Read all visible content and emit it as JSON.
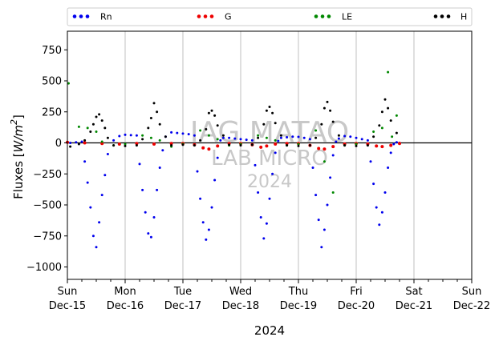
{
  "chart_data": {
    "type": "scatter",
    "xlabel": "2024",
    "ylabel_main": "Fluxes [",
    "ylabel_unit": "W/m",
    "ylabel_exp": "2",
    "ylabel_close": "]",
    "ylim": [
      -1100,
      900
    ],
    "xlim_days": [
      0,
      7
    ],
    "yticks": [
      -1000,
      -750,
      -500,
      -250,
      0,
      250,
      500,
      750
    ],
    "xticks": [
      {
        "day": 0,
        "label1": "Sun",
        "label2": "Dec-15"
      },
      {
        "day": 1,
        "label1": "Mon",
        "label2": "Dec-16"
      },
      {
        "day": 2,
        "label1": "Tue",
        "label2": "Dec-17"
      },
      {
        "day": 3,
        "label1": "Wed",
        "label2": "Dec-18"
      },
      {
        "day": 4,
        "label1": "Thu",
        "label2": "Dec-19"
      },
      {
        "day": 5,
        "label1": "Fri",
        "label2": "Dec-20"
      },
      {
        "day": 6,
        "label1": "Sat",
        "label2": "Dec-21"
      },
      {
        "day": 7,
        "label1": "Sun",
        "label2": "Dec-22"
      }
    ],
    "grid": "vertical",
    "zero_line": true,
    "legend_placement": "top, above plot",
    "watermark": [
      "IAG MATAO",
      "LAB MICRO",
      "2024"
    ],
    "data_end_day": 5.8,
    "series": [
      {
        "name": "Rn",
        "color": "#0000ee",
        "x": [
          0.05,
          0.15,
          0.25,
          0.3,
          0.35,
          0.4,
          0.45,
          0.5,
          0.55,
          0.6,
          0.65,
          0.7,
          0.8,
          0.9,
          1.0,
          1.1,
          1.2,
          1.25,
          1.3,
          1.35,
          1.4,
          1.45,
          1.5,
          1.55,
          1.6,
          1.65,
          1.7,
          1.8,
          1.9,
          2.0,
          2.1,
          2.2,
          2.25,
          2.3,
          2.35,
          2.4,
          2.45,
          2.5,
          2.55,
          2.6,
          2.65,
          2.7,
          2.8,
          2.9,
          3.0,
          3.1,
          3.2,
          3.25,
          3.3,
          3.35,
          3.4,
          3.45,
          3.5,
          3.55,
          3.6,
          3.65,
          3.7,
          3.8,
          3.9,
          4.0,
          4.1,
          4.2,
          4.25,
          4.3,
          4.35,
          4.4,
          4.45,
          4.5,
          4.55,
          4.6,
          4.65,
          4.7,
          4.8,
          4.9,
          5.0,
          5.1,
          5.2,
          5.25,
          5.3,
          5.35,
          5.4,
          5.45,
          5.5,
          5.55,
          5.6,
          5.65,
          5.7,
          5.75
        ],
        "y": [
          0,
          5,
          10,
          -150,
          -320,
          -520,
          -750,
          -840,
          -640,
          -420,
          -260,
          -90,
          20,
          55,
          65,
          62,
          60,
          -170,
          -380,
          -560,
          -730,
          -760,
          -600,
          -380,
          -200,
          -60,
          50,
          85,
          80,
          75,
          70,
          60,
          -230,
          -450,
          -640,
          -780,
          -700,
          -520,
          -300,
          -120,
          20,
          40,
          40,
          35,
          30,
          25,
          20,
          -180,
          -400,
          -600,
          -770,
          -650,
          -450,
          -250,
          -80,
          15,
          40,
          45,
          50,
          48,
          40,
          30,
          -200,
          -420,
          -620,
          -840,
          -700,
          -500,
          -280,
          -100,
          10,
          35,
          55,
          50,
          40,
          30,
          20,
          -150,
          -330,
          -520,
          -660,
          -560,
          -400,
          -200,
          -80,
          -10,
          5,
          0
        ]
      },
      {
        "name": "G",
        "color": "#ee0000",
        "x": [
          0.0,
          0.3,
          0.6,
          0.9,
          1.2,
          1.5,
          1.8,
          2.0,
          2.2,
          2.35,
          2.45,
          2.6,
          2.8,
          3.0,
          3.2,
          3.35,
          3.45,
          3.6,
          3.8,
          4.0,
          4.2,
          4.35,
          4.45,
          4.6,
          4.8,
          5.0,
          5.2,
          5.35,
          5.45,
          5.6,
          5.75
        ],
        "y": [
          5,
          0,
          -5,
          -10,
          -5,
          -10,
          -5,
          -5,
          -15,
          -40,
          -50,
          -25,
          -5,
          -5,
          -15,
          -35,
          -25,
          -10,
          -5,
          -5,
          -20,
          -45,
          -50,
          -30,
          -10,
          -5,
          -10,
          -25,
          -30,
          -20,
          -5
        ]
      },
      {
        "name": "LE",
        "color": "#008800",
        "x": [
          0.02,
          0.2,
          0.35,
          0.5,
          0.6,
          0.8,
          1.0,
          1.3,
          1.45,
          1.6,
          1.8,
          2.0,
          2.3,
          2.45,
          2.6,
          2.8,
          3.0,
          3.3,
          3.45,
          3.6,
          3.8,
          4.0,
          4.3,
          4.45,
          4.6,
          4.8,
          5.0,
          5.3,
          5.45,
          5.55,
          5.62,
          5.7
        ],
        "y": [
          480,
          130,
          120,
          90,
          10,
          -20,
          -10,
          60,
          40,
          20,
          -30,
          -10,
          100,
          60,
          30,
          -20,
          -10,
          60,
          40,
          20,
          -20,
          -10,
          100,
          -150,
          -400,
          -20,
          -10,
          90,
          120,
          570,
          50,
          220
        ]
      },
      {
        "name": "H",
        "color": "#000000",
        "x": [
          0.05,
          0.2,
          0.3,
          0.4,
          0.45,
          0.5,
          0.55,
          0.6,
          0.65,
          0.7,
          0.8,
          1.0,
          1.2,
          1.3,
          1.4,
          1.45,
          1.5,
          1.55,
          1.6,
          1.7,
          1.8,
          2.0,
          2.2,
          2.3,
          2.4,
          2.45,
          2.5,
          2.55,
          2.6,
          2.7,
          2.8,
          3.0,
          3.2,
          3.3,
          3.4,
          3.45,
          3.5,
          3.55,
          3.6,
          3.7,
          3.8,
          4.0,
          4.2,
          4.3,
          4.4,
          4.45,
          4.5,
          4.55,
          4.6,
          4.7,
          4.8,
          5.0,
          5.2,
          5.3,
          5.4,
          5.45,
          5.5,
          5.55,
          5.6,
          5.7
        ],
        "y": [
          -30,
          -10,
          20,
          90,
          150,
          210,
          230,
          180,
          120,
          40,
          -20,
          -25,
          -20,
          30,
          120,
          200,
          320,
          250,
          150,
          50,
          -20,
          -15,
          -20,
          20,
          110,
          240,
          260,
          220,
          140,
          60,
          -15,
          -20,
          -15,
          40,
          150,
          260,
          290,
          240,
          160,
          60,
          -20,
          -25,
          -20,
          40,
          150,
          280,
          330,
          260,
          170,
          60,
          -20,
          -25,
          -20,
          50,
          140,
          250,
          350,
          280,
          180,
          80
        ]
      }
    ]
  }
}
